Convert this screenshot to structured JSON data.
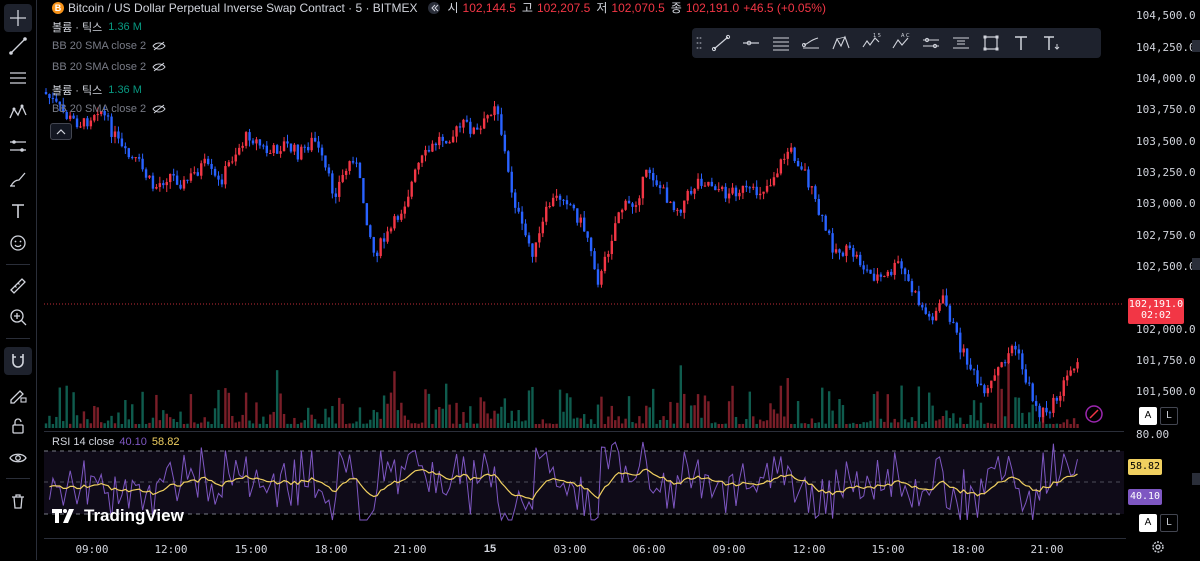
{
  "header": {
    "icon_glyph": "B",
    "title": "Bitcoin / US Dollar Perpetual Inverse Swap Contract · 5 · BITMEX",
    "open_label": "시",
    "open": "102,144.5",
    "high_label": "고",
    "high": "102,207.5",
    "low_label": "저",
    "low": "102,070.5",
    "close_label": "종",
    "close": "102,191.0",
    "change": "+46.5 (+0.05%)"
  },
  "legend": {
    "vol1_label": "볼륨 · 틱스",
    "vol1_value": "1.36 M",
    "bb1": "BB 20 SMA close 2",
    "bb2": "BB 20 SMA close 2",
    "vol2_label": "볼륨 · 틱스",
    "vol2_value": "1.36 M",
    "bb3": "BB 20 SMA close 2"
  },
  "rsi": {
    "label": "RSI 14 close",
    "value1": "40.10",
    "value2": "58.82"
  },
  "price_axis": {
    "ticks": [
      "104,500.0",
      "104,250.0",
      "104,000.0",
      "103,750.0",
      "103,500.0",
      "103,250.0",
      "103,000.0",
      "102,750.0",
      "102,500.0",
      "102,000.0",
      "101,750.0",
      "101,500.0"
    ],
    "current_price": "102,191.0",
    "countdown": "02:02",
    "rsi_top": "80.00",
    "rsi_badge_1": "58.82",
    "rsi_badge_2": "40.10",
    "btn_a": "A",
    "btn_l": "L",
    "btn_a2": "A",
    "btn_l2": "L"
  },
  "time_axis": [
    "09:00",
    "12:00",
    "15:00",
    "18:00",
    "21:00",
    "15",
    "03:00",
    "06:00",
    "09:00",
    "12:00",
    "15:00",
    "18:00",
    "21:00"
  ],
  "brand": {
    "logo_text": "TradingView"
  },
  "colors": {
    "up": "#f23645",
    "down": "#2962ff",
    "rsi": "#7e57c2",
    "rsi_ma": "#f0d060",
    "vol_up": "#089981"
  },
  "left_tools": [
    "crosshair-icon",
    "trendline-icon",
    "fib-icon",
    "pattern-icon",
    "measure-lines-icon",
    "brush-icon",
    "text-icon",
    "emoji-icon",
    "ruler-icon",
    "zoom-icon",
    "magnet-icon",
    "lock-drawing-icon",
    "lock-icon",
    "eye-icon",
    "trash-icon"
  ],
  "drawing_tools": [
    "trendline",
    "horizontal-ray",
    "parallel-channel",
    "regression",
    "xabcd-pattern",
    "elliott-wave",
    "abcd-pattern",
    "date-range",
    "price-range",
    "rectangle",
    "text",
    "text-note"
  ]
}
